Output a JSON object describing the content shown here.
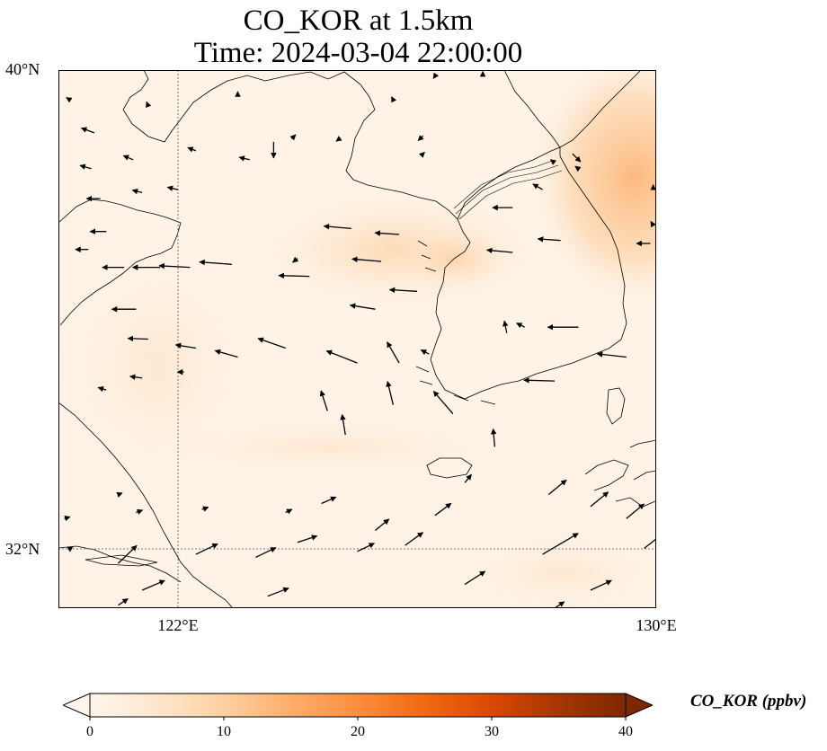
{
  "title_line1": "CO_KOR at 1.5km",
  "title_line2": "Time: 2024-03-04 22:00:00",
  "lat_labels": [
    "40°N",
    "32°N"
  ],
  "lon_labels": [
    "122°E",
    "130°E"
  ],
  "map_extent": {
    "lon_min": 120,
    "lon_max": 130,
    "lat_min": 31,
    "lat_max": 40
  },
  "gridlines": {
    "lons": [
      122
    ],
    "lats": [
      32
    ]
  },
  "colorbar": {
    "label": "CO_KOR (ppbv)",
    "min": 0,
    "max": 40,
    "ticks": [
      "0",
      "10",
      "20",
      "30",
      "40"
    ],
    "extend": "both",
    "colormap": [
      "#fff5eb",
      "#fee6ce",
      "#fdd0a2",
      "#fdae6b",
      "#fd8d3c",
      "#f16913",
      "#d94801",
      "#a63603",
      "#7f2704"
    ]
  },
  "concentration_field": [
    {
      "lon": 128.6,
      "lat": 39.2,
      "value": 9
    },
    {
      "lon": 129.3,
      "lat": 38.4,
      "value": 11
    },
    {
      "lon": 128.7,
      "lat": 37.6,
      "value": 8
    },
    {
      "lon": 125.7,
      "lat": 37.6,
      "value": 7
    },
    {
      "lon": 125.1,
      "lat": 37.8,
      "value": 5
    },
    {
      "lon": 127.8,
      "lat": 31.4,
      "value": 4
    },
    {
      "lon": 121.0,
      "lat": 33.7,
      "value": 2
    }
  ],
  "wind_vectors": [
    {
      "lon": 120.55,
      "lat": 38.35,
      "u": -1.4,
      "v": 0.4
    },
    {
      "lon": 121.25,
      "lat": 38.5,
      "u": -1.2,
      "v": 0.5
    },
    {
      "lon": 122.3,
      "lat": 38.65,
      "u": -1.0,
      "v": 0.4
    },
    {
      "lon": 123.2,
      "lat": 38.5,
      "u": -1.3,
      "v": 0.3
    },
    {
      "lon": 120.7,
      "lat": 37.85,
      "u": -1.7,
      "v": 0.0
    },
    {
      "lon": 121.4,
      "lat": 37.95,
      "u": -1.2,
      "v": 0.3
    },
    {
      "lon": 122.0,
      "lat": 38.0,
      "u": -1.3,
      "v": 0.3
    },
    {
      "lon": 120.8,
      "lat": 37.3,
      "u": -2.0,
      "v": 0.0
    },
    {
      "lon": 121.1,
      "lat": 36.7,
      "u": -2.7,
      "v": 0.0
    },
    {
      "lon": 121.7,
      "lat": 36.7,
      "u": -3.4,
      "v": 0.0
    },
    {
      "lon": 122.2,
      "lat": 36.7,
      "u": -3.8,
      "v": 0.2
    },
    {
      "lon": 122.9,
      "lat": 36.75,
      "u": -4.0,
      "v": 0.3
    },
    {
      "lon": 124.2,
      "lat": 36.55,
      "u": -3.8,
      "v": 0.1
    },
    {
      "lon": 126.0,
      "lat": 36.3,
      "u": -3.4,
      "v": 0.2
    },
    {
      "lon": 127.6,
      "lat": 37.7,
      "u": -2.5,
      "v": 0.0
    },
    {
      "lon": 128.4,
      "lat": 37.15,
      "u": -2.8,
      "v": 0.2
    },
    {
      "lon": 129.9,
      "lat": 37.1,
      "u": -1.7,
      "v": 0.0
    },
    {
      "lon": 127.6,
      "lat": 36.95,
      "u": -3.2,
      "v": 0.3
    },
    {
      "lon": 125.7,
      "lat": 37.25,
      "u": -3.0,
      "v": 0.2
    },
    {
      "lon": 124.9,
      "lat": 37.35,
      "u": -3.4,
      "v": 0.3
    },
    {
      "lon": 125.4,
      "lat": 36.8,
      "u": -3.6,
      "v": 0.3
    },
    {
      "lon": 125.3,
      "lat": 36.0,
      "u": -3.1,
      "v": 0.5
    },
    {
      "lon": 121.3,
      "lat": 36.0,
      "u": -3.0,
      "v": 0.0
    },
    {
      "lon": 121.5,
      "lat": 35.5,
      "u": -2.5,
      "v": 0.1
    },
    {
      "lon": 122.3,
      "lat": 35.35,
      "u": -2.5,
      "v": 0.4
    },
    {
      "lon": 123.0,
      "lat": 35.2,
      "u": -2.8,
      "v": 0.8
    },
    {
      "lon": 123.8,
      "lat": 35.35,
      "u": -3.4,
      "v": 1.2
    },
    {
      "lon": 125.0,
      "lat": 35.1,
      "u": -3.8,
      "v": 1.5
    },
    {
      "lon": 125.7,
      "lat": 35.1,
      "u": -1.5,
      "v": 2.6
    },
    {
      "lon": 126.2,
      "lat": 35.25,
      "u": -1.0,
      "v": 0.5
    },
    {
      "lon": 127.5,
      "lat": 35.6,
      "u": -0.3,
      "v": 1.5
    },
    {
      "lon": 127.8,
      "lat": 35.7,
      "u": -1.0,
      "v": 0.5
    },
    {
      "lon": 128.7,
      "lat": 35.7,
      "u": -3.8,
      "v": 0.0
    },
    {
      "lon": 129.5,
      "lat": 35.2,
      "u": -3.6,
      "v": 0.4
    },
    {
      "lon": 128.3,
      "lat": 34.8,
      "u": -3.8,
      "v": 0.1
    },
    {
      "lon": 124.5,
      "lat": 34.3,
      "u": -0.8,
      "v": 2.5
    },
    {
      "lon": 124.8,
      "lat": 33.9,
      "u": -0.4,
      "v": 2.5
    },
    {
      "lon": 125.6,
      "lat": 34.4,
      "u": -0.7,
      "v": 2.9
    },
    {
      "lon": 126.6,
      "lat": 34.25,
      "u": -2.4,
      "v": 2.8
    },
    {
      "lon": 127.3,
      "lat": 33.7,
      "u": -0.2,
      "v": 2.2
    },
    {
      "lon": 120.8,
      "lat": 34.65,
      "u": -1.0,
      "v": 0.3
    },
    {
      "lon": 121.4,
      "lat": 34.85,
      "u": -1.5,
      "v": 0.2
    },
    {
      "lon": 126.8,
      "lat": 33.1,
      "u": 0.8,
      "v": 1.0
    },
    {
      "lon": 128.2,
      "lat": 32.9,
      "u": 2.2,
      "v": 1.8
    },
    {
      "lon": 128.9,
      "lat": 32.7,
      "u": 2.2,
      "v": 1.8
    },
    {
      "lon": 129.5,
      "lat": 32.5,
      "u": 2.2,
      "v": 1.8
    },
    {
      "lon": 121.0,
      "lat": 32.9,
      "u": 0.5,
      "v": 0.2
    },
    {
      "lon": 120.1,
      "lat": 32.5,
      "u": 0.7,
      "v": 0.2
    },
    {
      "lon": 121.3,
      "lat": 32.6,
      "u": 0.8,
      "v": 0.3
    },
    {
      "lon": 122.4,
      "lat": 32.65,
      "u": 0.8,
      "v": 0.3
    },
    {
      "lon": 123.8,
      "lat": 32.6,
      "u": 0.8,
      "v": 0.4
    },
    {
      "lon": 124.4,
      "lat": 32.75,
      "u": 1.8,
      "v": 0.8
    },
    {
      "lon": 125.3,
      "lat": 32.3,
      "u": 1.7,
      "v": 1.4
    },
    {
      "lon": 126.3,
      "lat": 32.55,
      "u": 2.0,
      "v": 1.5
    },
    {
      "lon": 120.2,
      "lat": 32.0,
      "u": 0.3,
      "v": 0.2
    },
    {
      "lon": 121.0,
      "lat": 31.75,
      "u": 2.3,
      "v": 2.2
    },
    {
      "lon": 122.3,
      "lat": 31.9,
      "u": 2.7,
      "v": 1.3
    },
    {
      "lon": 123.3,
      "lat": 31.85,
      "u": 2.5,
      "v": 1.2
    },
    {
      "lon": 124.0,
      "lat": 32.1,
      "u": 2.4,
      "v": 0.8
    },
    {
      "lon": 125.0,
      "lat": 31.95,
      "u": 2.1,
      "v": 1.0
    },
    {
      "lon": 125.8,
      "lat": 32.05,
      "u": 2.2,
      "v": 1.6
    },
    {
      "lon": 126.8,
      "lat": 31.4,
      "u": 2.5,
      "v": 1.6
    },
    {
      "lon": 128.1,
      "lat": 31.9,
      "u": 4.4,
      "v": 2.6
    },
    {
      "lon": 129.8,
      "lat": 32.0,
      "u": 2.8,
      "v": 2.2
    },
    {
      "lon": 121.4,
      "lat": 31.3,
      "u": 2.8,
      "v": 1.2
    },
    {
      "lon": 123.5,
      "lat": 31.2,
      "u": 2.6,
      "v": 1.0
    },
    {
      "lon": 128.9,
      "lat": 31.3,
      "u": 2.6,
      "v": 1.2
    },
    {
      "lon": 121.0,
      "lat": 31.05,
      "u": 1.2,
      "v": 0.8
    },
    {
      "lon": 128.3,
      "lat": 31.0,
      "u": 1.2,
      "v": 0.8
    },
    {
      "lon": 121.5,
      "lat": 39.4,
      "u": -0.2,
      "v": 0.5
    },
    {
      "lon": 120.2,
      "lat": 39.5,
      "u": -0.5,
      "v": 0.3
    },
    {
      "lon": 120.6,
      "lat": 38.95,
      "u": -1.6,
      "v": 0.6
    },
    {
      "lon": 123.6,
      "lat": 38.8,
      "u": 0.0,
      "v": -2.0
    },
    {
      "lon": 123.9,
      "lat": 38.85,
      "u": 0.5,
      "v": 0.5
    },
    {
      "lon": 124.7,
      "lat": 38.85,
      "u": -0.4,
      "v": -0.3
    },
    {
      "lon": 123.0,
      "lat": 39.6,
      "u": 0.0,
      "v": 0.3
    },
    {
      "lon": 125.6,
      "lat": 39.5,
      "u": -0.2,
      "v": 0.4
    },
    {
      "lon": 126.3,
      "lat": 39.9,
      "u": -0.2,
      "v": -0.3
    },
    {
      "lon": 127.1,
      "lat": 39.95,
      "u": 0.0,
      "v": 0.2
    },
    {
      "lon": 126.1,
      "lat": 38.6,
      "u": 0.2,
      "v": 0.2
    },
    {
      "lon": 128.6,
      "lat": 38.6,
      "u": 1.0,
      "v": -1.0
    },
    {
      "lon": 128.3,
      "lat": 38.45,
      "u": -0.5,
      "v": 0.4
    },
    {
      "lon": 128.7,
      "lat": 38.35,
      "u": -0.4,
      "v": 0.3
    },
    {
      "lon": 128.1,
      "lat": 38.0,
      "u": -1.2,
      "v": 0.7
    },
    {
      "lon": 126.1,
      "lat": 38.9,
      "u": -0.6,
      "v": -0.6
    },
    {
      "lon": 124.0,
      "lat": 36.85,
      "u": -0.6,
      "v": -0.5
    },
    {
      "lon": 129.95,
      "lat": 37.4,
      "u": -0.3,
      "v": 0.5
    },
    {
      "lon": 129.95,
      "lat": 38.0,
      "u": 0.0,
      "v": 0.6
    },
    {
      "lon": 120.5,
      "lat": 37.0,
      "u": -1.6,
      "v": 0.0
    },
    {
      "lon": 122.1,
      "lat": 34.95,
      "u": -0.8,
      "v": 0.0
    }
  ]
}
